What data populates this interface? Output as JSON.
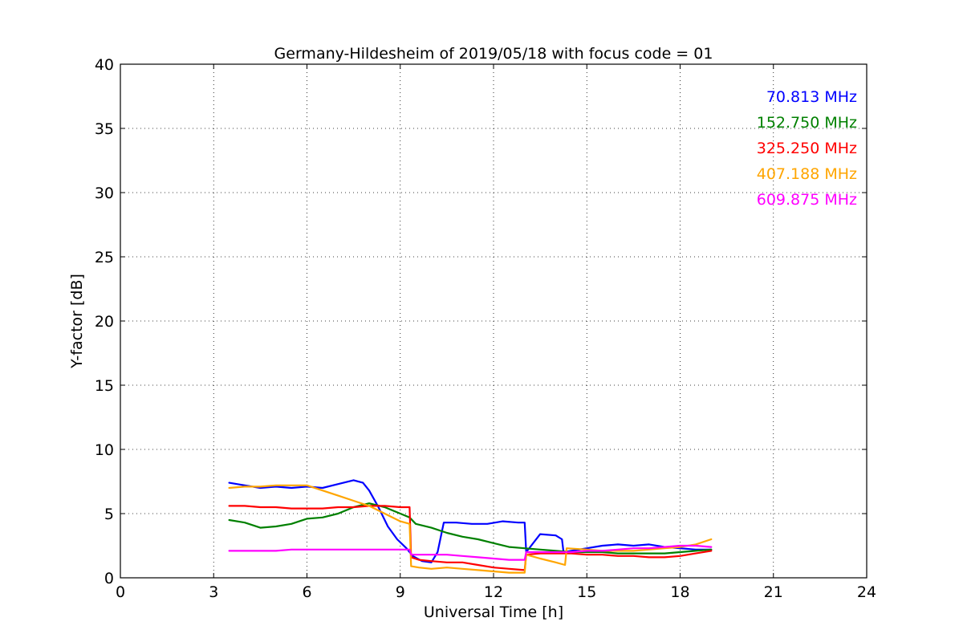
{
  "chart_data": {
    "type": "line",
    "title": "Germany-Hildesheim of 2019/05/18 with focus code = 01",
    "xlabel": "Universal Time [h]",
    "ylabel": "Y-factor [dB]",
    "xlim": [
      0,
      24
    ],
    "ylim": [
      0,
      40
    ],
    "xticks": [
      0,
      3,
      6,
      9,
      12,
      15,
      18,
      21,
      24
    ],
    "yticks": [
      0,
      5,
      10,
      15,
      20,
      25,
      30,
      35,
      40
    ],
    "grid": true,
    "legend_position": "top-right",
    "series": [
      {
        "name": "70.813 MHz",
        "color": "#0000ff",
        "x": [
          3.5,
          4.0,
          4.5,
          5.0,
          5.5,
          6.0,
          6.5,
          7.0,
          7.5,
          7.8,
          8.0,
          8.3,
          8.6,
          8.9,
          9.2,
          9.4,
          9.7,
          10.0,
          10.2,
          10.4,
          10.8,
          11.3,
          11.8,
          12.3,
          12.8,
          13.0,
          13.05,
          13.5,
          14.0,
          14.2,
          14.25,
          15.0,
          15.5,
          16.0,
          16.5,
          17.0,
          17.5,
          18.0,
          18.5,
          19.0
        ],
        "y": [
          7.4,
          7.2,
          7.0,
          7.1,
          7.0,
          7.1,
          7.0,
          7.3,
          7.6,
          7.4,
          6.8,
          5.5,
          4.0,
          3.0,
          2.3,
          1.7,
          1.3,
          1.2,
          2.0,
          4.3,
          4.3,
          4.2,
          4.2,
          4.4,
          4.3,
          4.3,
          2.0,
          3.4,
          3.3,
          3.0,
          2.0,
          2.3,
          2.5,
          2.6,
          2.5,
          2.6,
          2.4,
          2.3,
          2.2,
          2.2
        ]
      },
      {
        "name": "152.750 MHz",
        "color": "#008000",
        "x": [
          3.5,
          4.0,
          4.5,
          5.0,
          5.5,
          6.0,
          6.5,
          7.0,
          7.5,
          8.0,
          8.5,
          9.0,
          9.3,
          9.5,
          10.0,
          10.5,
          11.0,
          11.5,
          12.0,
          12.5,
          13.0,
          13.5,
          14.0,
          14.5,
          15.0,
          15.5,
          16.0,
          16.5,
          17.0,
          17.5,
          18.0,
          18.5,
          19.0
        ],
        "y": [
          4.5,
          4.3,
          3.9,
          4.0,
          4.2,
          4.6,
          4.7,
          5.0,
          5.5,
          5.8,
          5.5,
          5.0,
          4.7,
          4.2,
          3.9,
          3.5,
          3.2,
          3.0,
          2.7,
          2.4,
          2.3,
          2.2,
          2.1,
          2.0,
          2.0,
          2.0,
          1.9,
          1.9,
          1.9,
          1.9,
          2.0,
          2.1,
          2.2
        ]
      },
      {
        "name": "325.250 MHz",
        "color": "#ff0000",
        "x": [
          3.5,
          4.0,
          4.5,
          5.0,
          5.5,
          6.0,
          6.5,
          7.0,
          7.5,
          8.0,
          8.5,
          9.0,
          9.3,
          9.35,
          9.6,
          10.0,
          10.5,
          11.0,
          11.5,
          12.0,
          12.5,
          13.0,
          13.05,
          13.5,
          14.0,
          14.5,
          15.0,
          15.5,
          16.0,
          16.5,
          17.0,
          17.5,
          18.0,
          18.5,
          19.0
        ],
        "y": [
          5.6,
          5.6,
          5.5,
          5.5,
          5.4,
          5.4,
          5.4,
          5.5,
          5.5,
          5.6,
          5.6,
          5.5,
          5.5,
          1.6,
          1.4,
          1.3,
          1.2,
          1.2,
          1.0,
          0.8,
          0.7,
          0.6,
          1.8,
          1.9,
          1.9,
          1.9,
          1.8,
          1.8,
          1.7,
          1.7,
          1.6,
          1.6,
          1.7,
          1.9,
          2.1
        ]
      },
      {
        "name": "407.188 MHz",
        "color": "#ffa500",
        "x": [
          3.5,
          4.0,
          4.5,
          5.0,
          5.5,
          6.0,
          6.5,
          7.0,
          7.5,
          8.0,
          8.5,
          9.0,
          9.3,
          9.35,
          9.6,
          10.0,
          10.5,
          11.0,
          11.5,
          12.0,
          12.5,
          13.0,
          13.05,
          13.5,
          14.0,
          14.3,
          14.35,
          15.0,
          15.5,
          16.0,
          16.5,
          17.0,
          17.5,
          18.0,
          18.5,
          19.0
        ],
        "y": [
          7.0,
          7.1,
          7.1,
          7.2,
          7.2,
          7.2,
          6.8,
          6.4,
          6.0,
          5.6,
          5.0,
          4.4,
          4.2,
          0.9,
          0.8,
          0.7,
          0.8,
          0.7,
          0.6,
          0.5,
          0.4,
          0.4,
          1.8,
          1.5,
          1.2,
          1.0,
          2.3,
          2.2,
          2.1,
          2.1,
          2.1,
          2.2,
          2.3,
          2.4,
          2.6,
          3.0
        ]
      },
      {
        "name": "609.875 MHz",
        "color": "#ff00ff",
        "x": [
          3.5,
          4.0,
          4.5,
          5.0,
          5.5,
          6.0,
          6.5,
          7.0,
          7.5,
          8.0,
          8.5,
          9.0,
          9.3,
          9.35,
          9.6,
          10.0,
          10.5,
          11.0,
          11.5,
          12.0,
          12.5,
          13.0,
          13.05,
          13.5,
          14.0,
          14.5,
          15.0,
          15.5,
          16.0,
          16.5,
          17.0,
          17.5,
          18.0,
          18.5,
          19.0
        ],
        "y": [
          2.1,
          2.1,
          2.1,
          2.1,
          2.2,
          2.2,
          2.2,
          2.2,
          2.2,
          2.2,
          2.2,
          2.2,
          2.2,
          1.8,
          1.8,
          1.8,
          1.8,
          1.7,
          1.6,
          1.5,
          1.4,
          1.4,
          2.0,
          2.0,
          2.0,
          2.0,
          2.1,
          2.1,
          2.2,
          2.3,
          2.3,
          2.4,
          2.5,
          2.5,
          2.4
        ]
      }
    ]
  }
}
